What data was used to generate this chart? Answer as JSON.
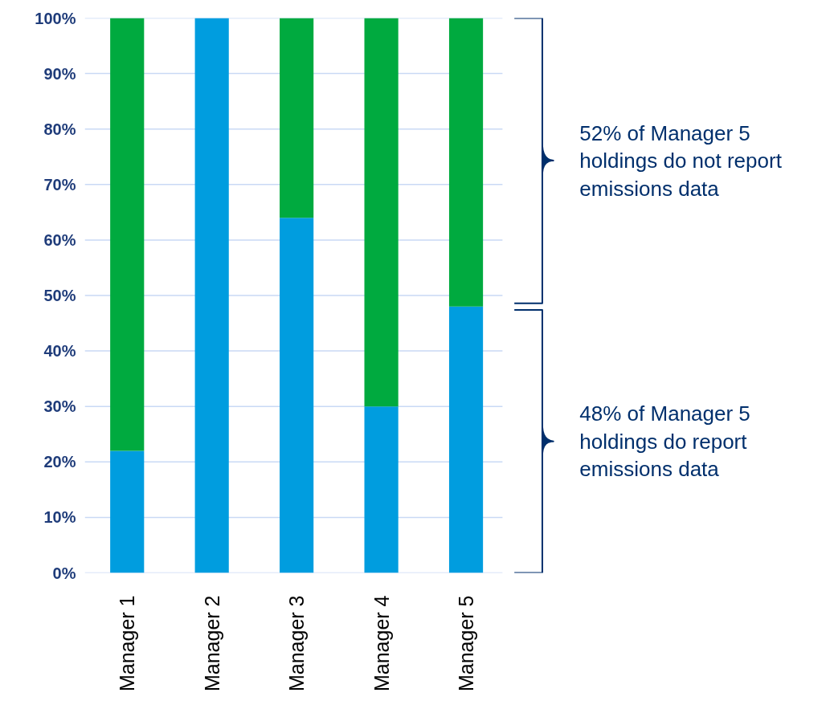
{
  "chart_data": {
    "type": "bar",
    "stacked": true,
    "categories": [
      "Manager 1",
      "Manager 2",
      "Manager 3",
      "Manager 4",
      "Manager 5"
    ],
    "series": [
      {
        "color": "#009ddf",
        "values": [
          22,
          100,
          64,
          30,
          48
        ]
      },
      {
        "color": "#00aa3f",
        "values": [
          78,
          0,
          36,
          70,
          52
        ]
      }
    ],
    "ylim": [
      0,
      100
    ],
    "yticks": [
      {
        "value": 0,
        "label": "0%"
      },
      {
        "value": 10,
        "label": "10%"
      },
      {
        "value": 20,
        "label": "20%"
      },
      {
        "value": 30,
        "label": "30%"
      },
      {
        "value": 40,
        "label": "40%"
      },
      {
        "value": 50,
        "label": "50%"
      },
      {
        "value": 60,
        "label": "60%"
      },
      {
        "value": 70,
        "label": "70%"
      },
      {
        "value": 80,
        "label": "80%"
      },
      {
        "value": 90,
        "label": "90%"
      },
      {
        "value": 100,
        "label": "100%"
      }
    ],
    "grid": "y",
    "annotations": [
      "52% of Manager 5\nholdings do not report\nemissions data",
      "48% of Manager 5\nholdings do report\nemissions data"
    ]
  }
}
